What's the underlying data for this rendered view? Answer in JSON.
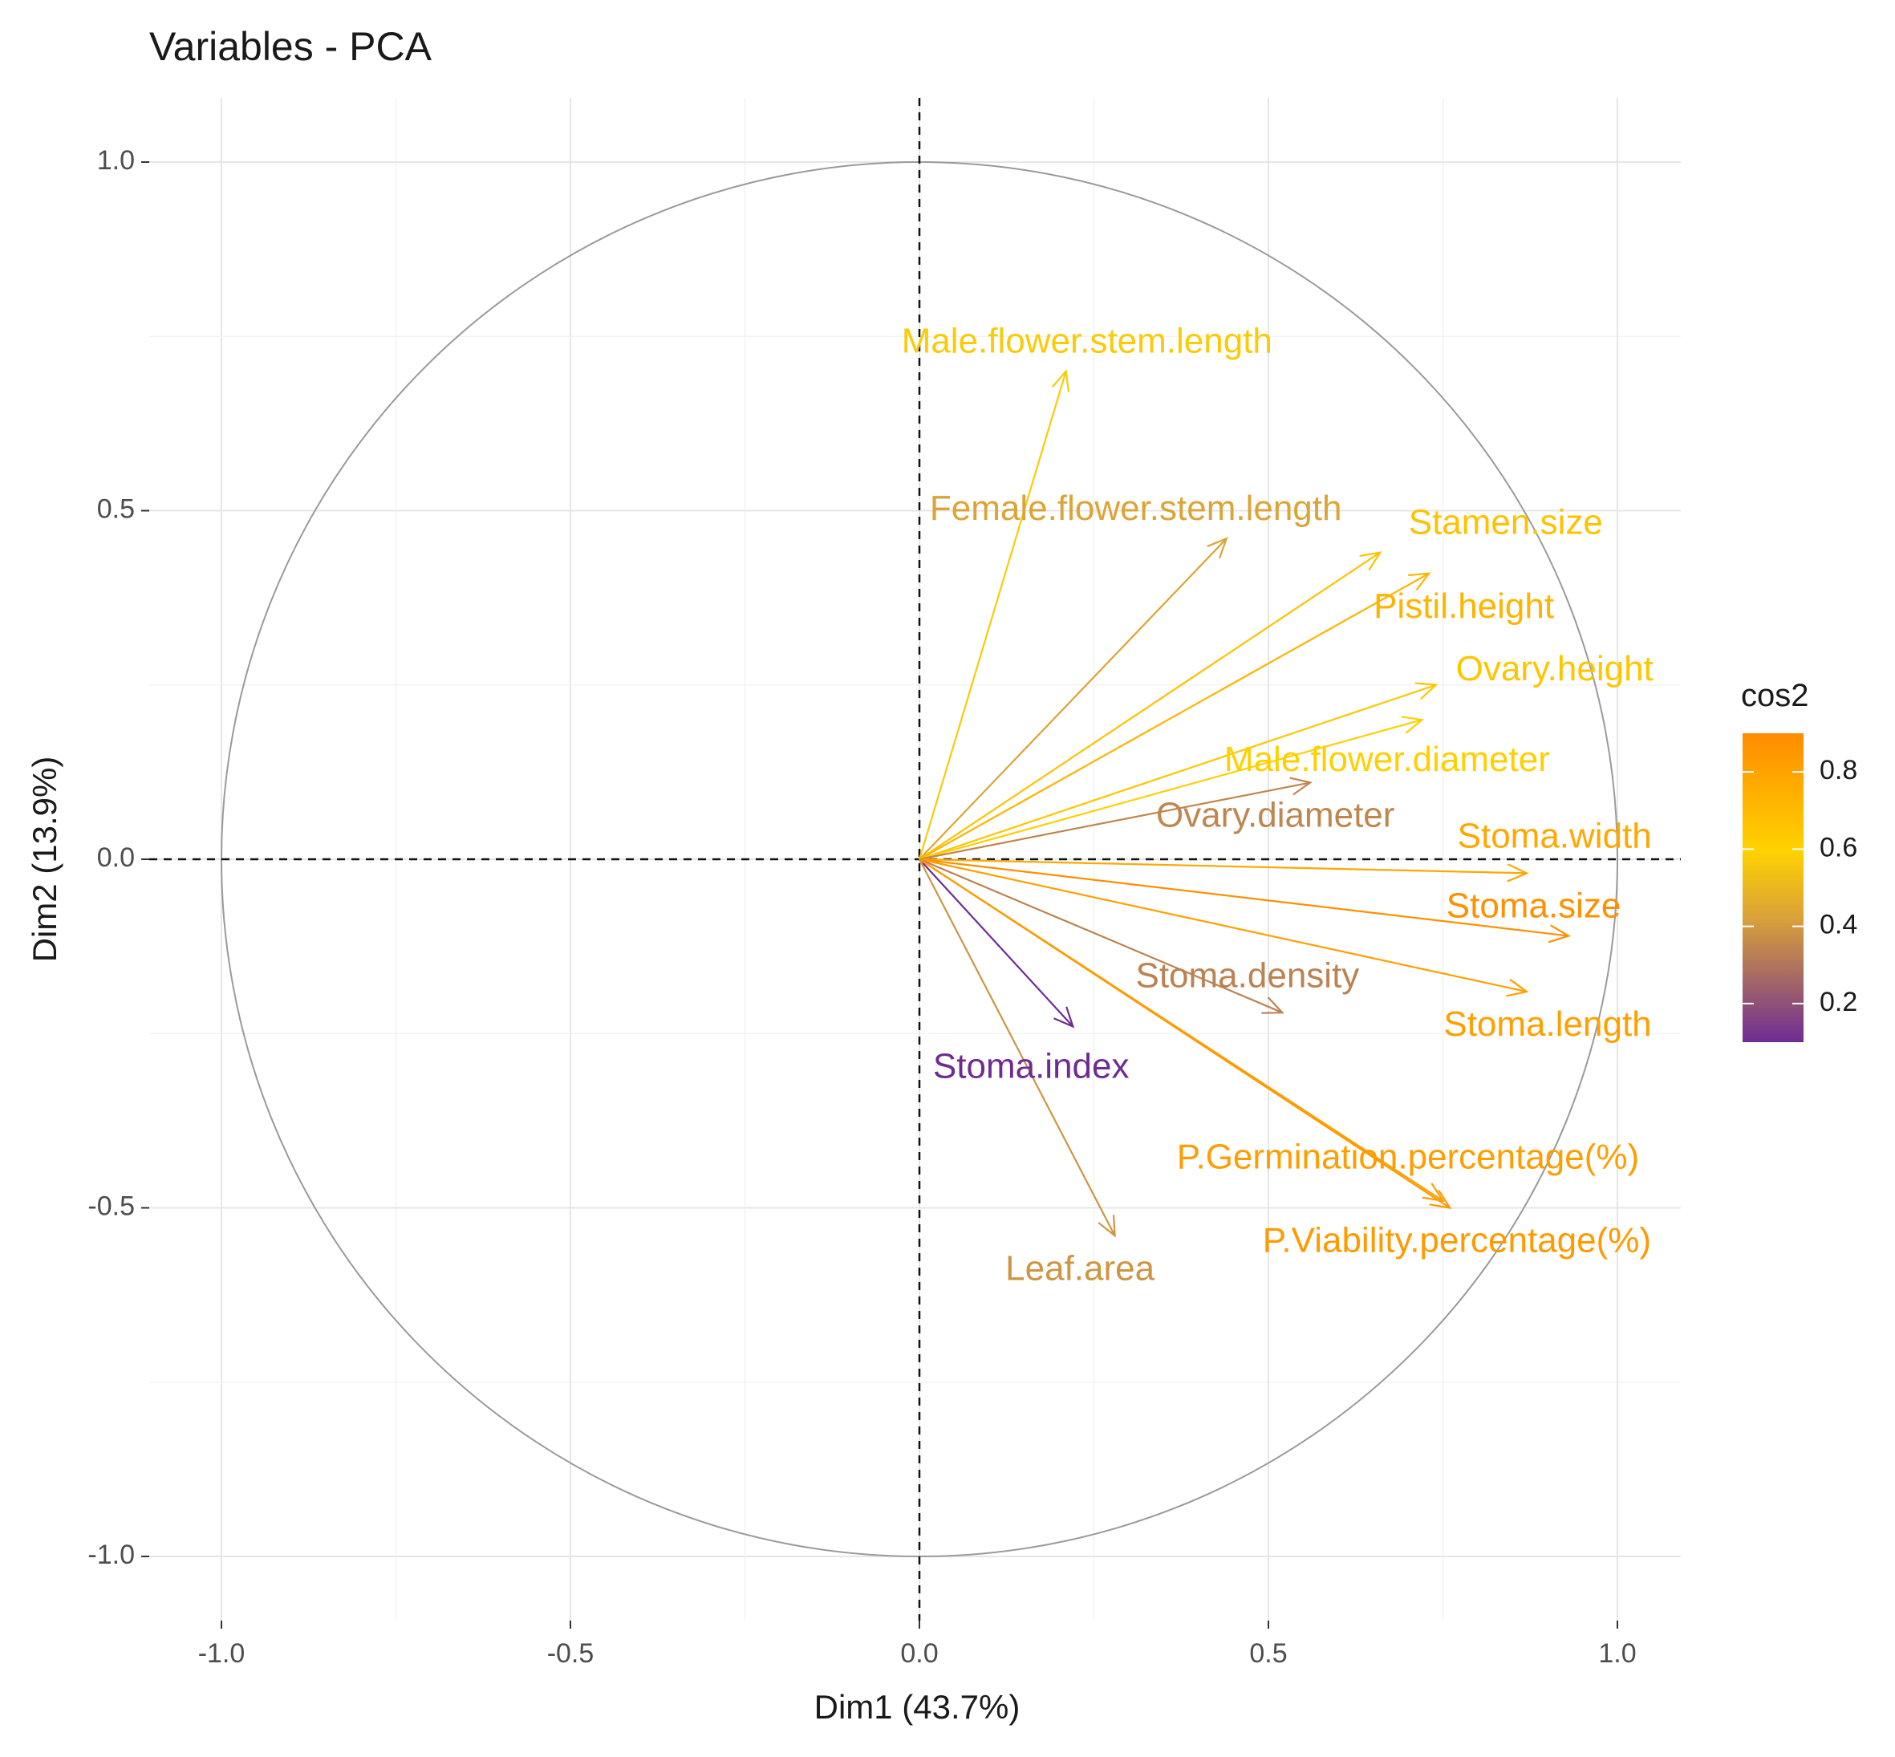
{
  "chart_data": {
    "type": "scatter",
    "subtype": "pca-correlation-circle",
    "title": "Variables - PCA",
    "xlabel": "Dim1 (43.7%)",
    "ylabel": "Dim2 (13.9%)",
    "xlim": [
      -1.1,
      1.1
    ],
    "ylim": [
      -1.1,
      1.1
    ],
    "x_ticks": [
      -1.0,
      -0.5,
      0.0,
      0.5,
      1.0
    ],
    "y_ticks": [
      -1.0,
      -0.5,
      0.0,
      0.5,
      1.0
    ],
    "x_tick_labels": [
      "-1.0",
      "-0.5",
      "0.0",
      "0.5",
      "1.0"
    ],
    "y_tick_labels": [
      "-1.0",
      "-0.5",
      "0.0",
      "0.5",
      "1.0"
    ],
    "grid": true,
    "unit_circle": true,
    "legend": {
      "title": "cos2",
      "position": "right",
      "ticks": [
        0.2,
        0.4,
        0.6,
        0.8
      ],
      "tick_labels": [
        "0.2",
        "0.4",
        "0.6",
        "0.8"
      ],
      "range": [
        0.1,
        0.9
      ],
      "gradient": [
        "#6E2C93",
        "#D9A13A",
        "#FFD200",
        "#FF8C00"
      ]
    },
    "series": [
      {
        "name": "Male.flower.stem.length",
        "x": 0.21,
        "y": 0.7,
        "cos2": 0.53,
        "label_x": 0.24,
        "label_y": 0.74
      },
      {
        "name": "Female.flower.stem.length",
        "x": 0.44,
        "y": 0.46,
        "cos2": 0.41,
        "label_x": 0.31,
        "label_y": 0.5
      },
      {
        "name": "Stamen.size",
        "x": 0.66,
        "y": 0.44,
        "cos2": 0.63,
        "label_x": 0.84,
        "label_y": 0.48
      },
      {
        "name": "Pistil.height",
        "x": 0.73,
        "y": 0.41,
        "cos2": 0.7,
        "label_x": 0.78,
        "label_y": 0.36
      },
      {
        "name": "Ovary.height",
        "x": 0.74,
        "y": 0.25,
        "cos2": 0.61,
        "label_x": 0.91,
        "label_y": 0.27
      },
      {
        "name": "Male.flower.diameter",
        "x": 0.72,
        "y": 0.2,
        "cos2": 0.56,
        "label_x": 0.67,
        "label_y": 0.14
      },
      {
        "name": "Ovary.diameter",
        "x": 0.56,
        "y": 0.11,
        "cos2": 0.33,
        "label_x": 0.51,
        "label_y": 0.06
      },
      {
        "name": "Stoma.width",
        "x": 0.87,
        "y": -0.02,
        "cos2": 0.76,
        "label_x": 0.91,
        "label_y": 0.03
      },
      {
        "name": "Stoma.size",
        "x": 0.93,
        "y": -0.11,
        "cos2": 0.88,
        "label_x": 0.88,
        "label_y": -0.07
      },
      {
        "name": "Stoma.length",
        "x": 0.87,
        "y": -0.19,
        "cos2": 0.8,
        "label_x": 0.9,
        "label_y": -0.24
      },
      {
        "name": "Stoma.density",
        "x": 0.52,
        "y": -0.22,
        "cos2": 0.32,
        "label_x": 0.47,
        "label_y": -0.17
      },
      {
        "name": "Stoma.index",
        "x": 0.22,
        "y": -0.24,
        "cos2": 0.1,
        "label_x": 0.16,
        "label_y": -0.3
      },
      {
        "name": "P.Germination.percentage(%)",
        "x": 0.75,
        "y": -0.49,
        "cos2": 0.81,
        "label_x": 0.7,
        "label_y": -0.43
      },
      {
        "name": "P.Viability.percentage(%)",
        "x": 0.76,
        "y": -0.5,
        "cos2": 0.83,
        "label_x": 0.77,
        "label_y": -0.55
      },
      {
        "name": "Leaf.area",
        "x": 0.28,
        "y": -0.54,
        "cos2": 0.37,
        "label_x": 0.23,
        "label_y": -0.59
      }
    ]
  }
}
